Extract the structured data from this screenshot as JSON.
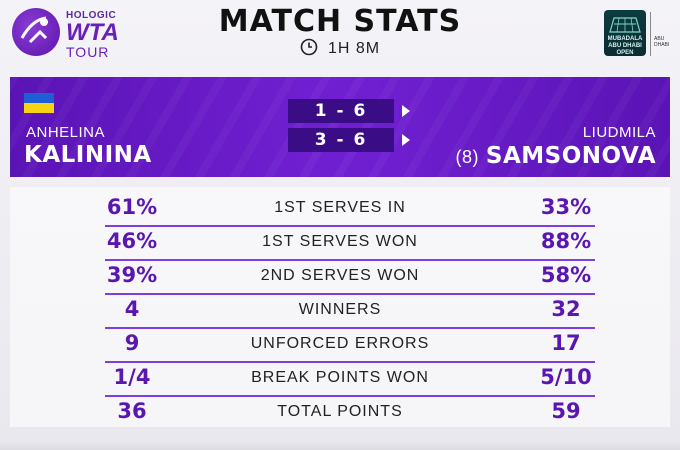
{
  "branding": {
    "wta_sponsor": "HOLOGIC",
    "wta_mark": "WTA",
    "wta_tour": "TOUR",
    "event_logo_text": "MUBADALA ABU DHABI OPEN",
    "event_logo_right": "ABU DHABI"
  },
  "header": {
    "title": "MATCH STATS",
    "duration": "1H 8M"
  },
  "scoreboard": {
    "player1": {
      "first_name": "ANHELINA",
      "last_name": "KALININA",
      "flag": "ukraine-flag"
    },
    "player2": {
      "first_name": "LIUDMILA",
      "seed": "(8)",
      "last_name": "SAMSONOVA"
    },
    "sets": [
      {
        "score": "1 - 6"
      },
      {
        "score": "3 - 6"
      }
    ]
  },
  "stats": [
    {
      "label": "1ST SERVES IN",
      "p1": "61%",
      "p2": "33%"
    },
    {
      "label": "1ST SERVES WON",
      "p1": "46%",
      "p2": "88%"
    },
    {
      "label": "2ND SERVES WON",
      "p1": "39%",
      "p2": "58%"
    },
    {
      "label": "WINNERS",
      "p1": "4",
      "p2": "32"
    },
    {
      "label": "UNFORCED ERRORS",
      "p1": "9",
      "p2": "17"
    },
    {
      "label": "BREAK POINTS WON",
      "p1": "1/4",
      "p2": "5/10"
    },
    {
      "label": "TOTAL POINTS",
      "p1": "36",
      "p2": "59"
    }
  ],
  "colors": {
    "accent_purple": "#6f1fd0",
    "stat_value": "#5a16b0",
    "set_box": "#3a0d86"
  }
}
